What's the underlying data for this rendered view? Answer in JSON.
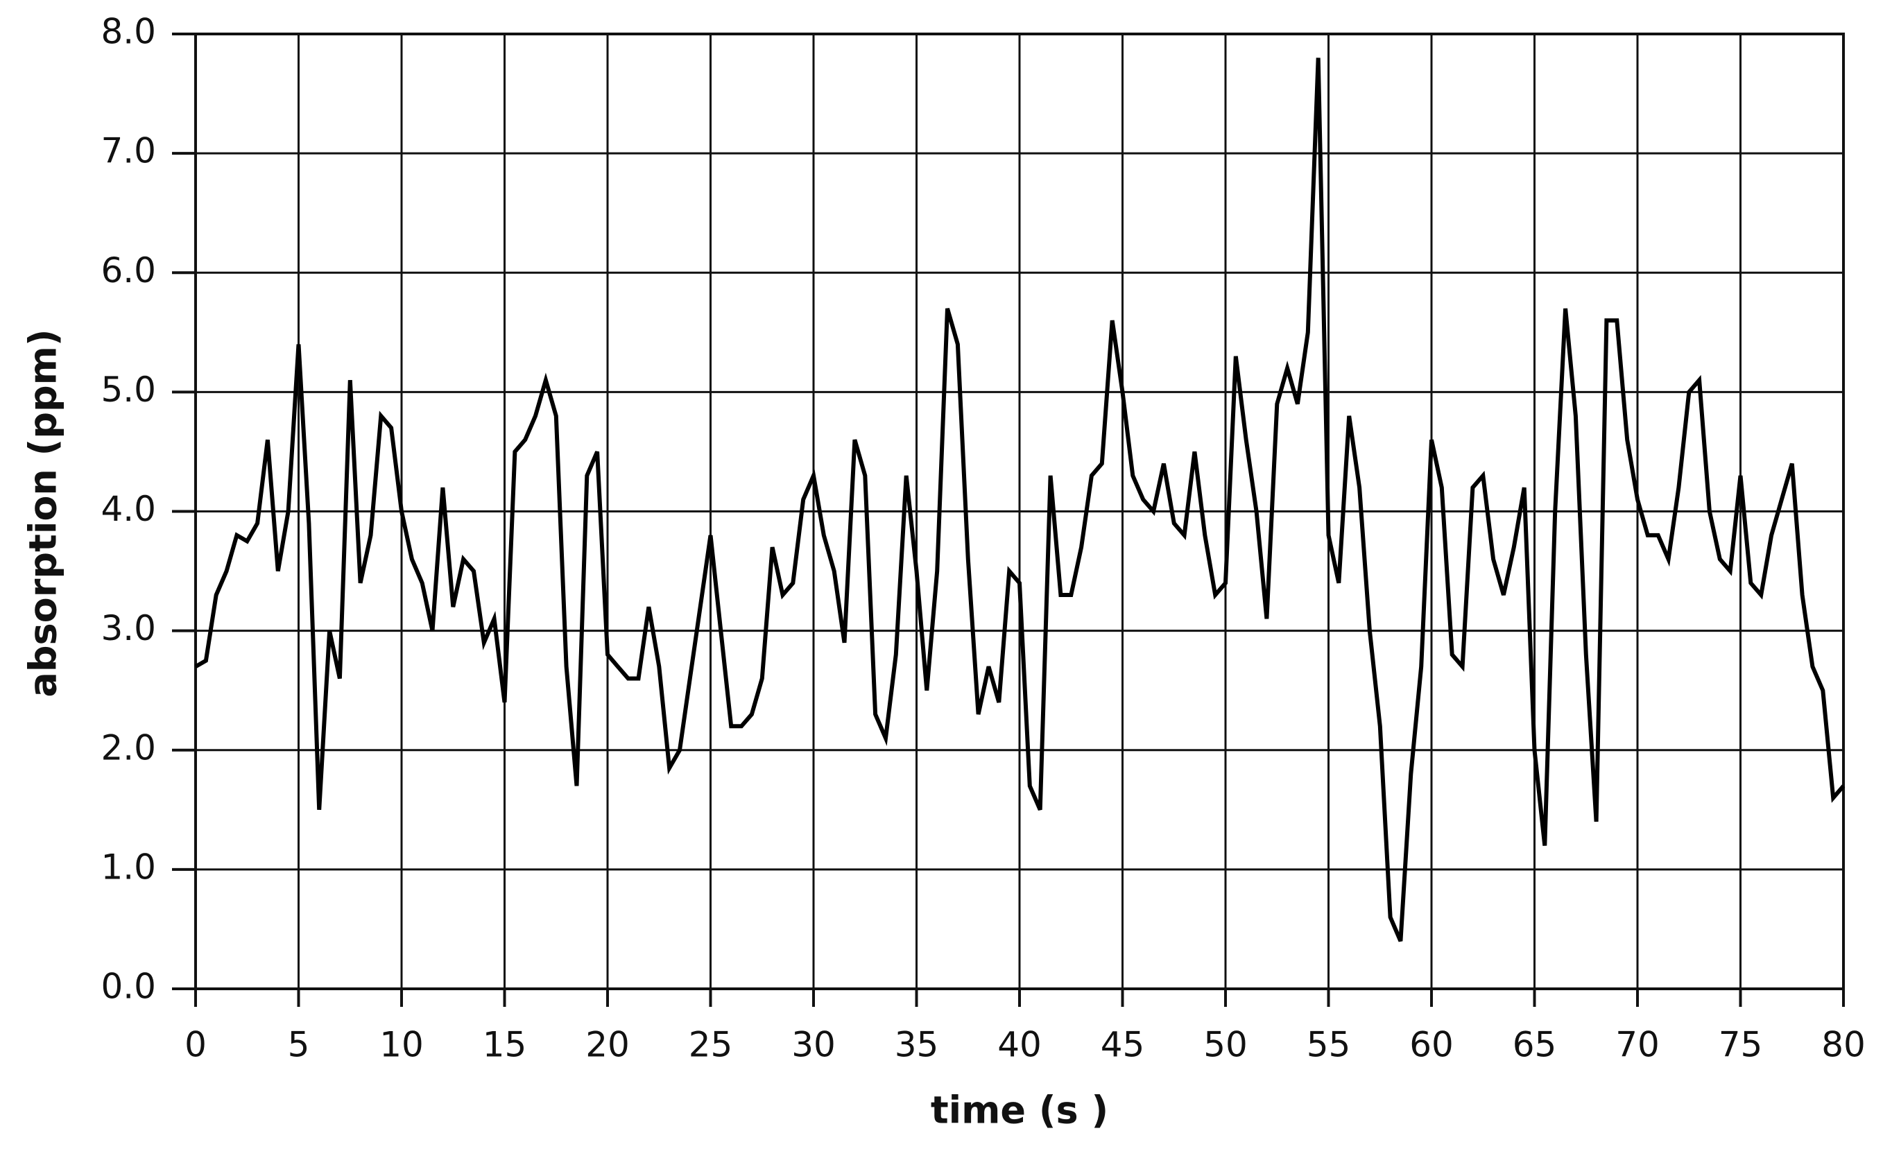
{
  "chart_data": {
    "type": "line",
    "xlabel": "time (s )",
    "ylabel": "absorption (ppm)",
    "x": [
      0,
      0.5,
      1,
      1.5,
      2,
      2.5,
      3,
      3.5,
      4,
      4.5,
      5,
      5.5,
      6,
      6.5,
      7,
      7.5,
      8,
      8.5,
      9,
      9.5,
      10,
      10.5,
      11,
      11.5,
      12,
      12.5,
      13,
      13.5,
      14,
      14.5,
      15,
      15.5,
      16,
      16.5,
      17,
      17.5,
      18,
      18.5,
      19,
      19.5,
      20,
      20.5,
      21,
      21.5,
      22,
      22.5,
      23,
      23.5,
      24,
      24.5,
      25,
      25.5,
      26,
      26.5,
      27,
      27.5,
      28,
      28.5,
      29,
      29.5,
      30,
      30.5,
      31,
      31.5,
      32,
      32.5,
      33,
      33.5,
      34,
      34.5,
      35,
      35.5,
      36,
      36.5,
      37,
      37.5,
      38,
      38.5,
      39,
      39.5,
      40,
      40.5,
      41,
      41.5,
      42,
      42.5,
      43,
      43.5,
      44,
      44.5,
      45,
      45.5,
      46,
      46.5,
      47,
      47.5,
      48,
      48.5,
      49,
      49.5,
      50,
      50.5,
      51,
      51.5,
      52,
      52.5,
      53,
      53.5,
      54,
      54.5,
      55,
      55.5,
      56,
      56.5,
      57,
      57.5,
      58,
      58.5,
      59,
      59.5,
      60,
      60.5,
      61,
      61.5,
      62,
      62.5,
      63,
      63.5,
      64,
      64.5,
      65,
      65.5,
      66,
      66.5,
      67,
      67.5,
      68,
      68.5,
      69,
      69.5,
      70,
      70.5,
      71,
      71.5,
      72,
      72.5,
      73,
      73.5,
      74,
      74.5,
      75,
      75.5,
      76,
      76.5,
      77,
      77.5,
      78,
      78.5,
      79,
      79.5,
      80
    ],
    "values": [
      2.7,
      2.75,
      3.3,
      3.5,
      3.8,
      3.75,
      3.9,
      4.6,
      3.5,
      4.0,
      5.4,
      3.9,
      1.5,
      3.0,
      2.6,
      5.1,
      3.4,
      3.8,
      4.8,
      4.7,
      4.0,
      3.6,
      3.4,
      3.0,
      4.2,
      3.2,
      3.6,
      3.5,
      2.9,
      3.1,
      2.4,
      4.5,
      4.6,
      4.8,
      5.1,
      4.8,
      2.7,
      1.7,
      4.3,
      4.5,
      2.8,
      2.7,
      2.6,
      2.6,
      3.2,
      2.7,
      1.85,
      2.0,
      2.6,
      3.2,
      3.8,
      3.0,
      2.2,
      2.2,
      2.3,
      2.6,
      3.7,
      3.3,
      3.4,
      4.1,
      4.3,
      3.8,
      3.5,
      2.9,
      4.6,
      4.3,
      2.3,
      2.1,
      2.8,
      4.3,
      3.5,
      2.5,
      3.5,
      5.7,
      5.4,
      3.6,
      2.3,
      2.7,
      2.4,
      3.5,
      3.4,
      1.7,
      1.5,
      4.3,
      3.3,
      3.3,
      3.7,
      4.3,
      4.4,
      5.6,
      5.0,
      4.3,
      4.1,
      4.0,
      4.4,
      3.9,
      3.8,
      4.5,
      3.8,
      3.3,
      3.4,
      5.3,
      4.6,
      4.0,
      3.1,
      4.9,
      5.2,
      4.9,
      5.5,
      7.8,
      3.8,
      3.4,
      4.8,
      4.2,
      3.0,
      2.2,
      0.6,
      0.4,
      1.8,
      2.7,
      4.6,
      4.2,
      2.8,
      2.7,
      4.2,
      4.3,
      3.6,
      3.3,
      3.7,
      4.2,
      2.0,
      1.2,
      4.0,
      5.7,
      4.8,
      2.8,
      1.4,
      5.6,
      5.6,
      4.6,
      4.1,
      3.8,
      3.8,
      3.6,
      4.2,
      5.0,
      5.1,
      4.0,
      3.6,
      3.5,
      4.3,
      3.4,
      3.3,
      3.8,
      4.1,
      4.4,
      3.3,
      2.7,
      2.5,
      1.6,
      1.7
    ],
    "color": "#000000",
    "xlim": [
      0,
      80
    ],
    "ylim": [
      0,
      8
    ],
    "xticks": [
      0,
      5,
      10,
      15,
      20,
      25,
      30,
      35,
      40,
      45,
      50,
      55,
      60,
      65,
      70,
      75,
      80
    ],
    "yticks": [
      {
        "value": 0,
        "label": "0.0"
      },
      {
        "value": 1,
        "label": "1.0"
      },
      {
        "value": 2,
        "label": "2.0"
      },
      {
        "value": 3,
        "label": "3.0"
      },
      {
        "value": 4,
        "label": "4.0"
      },
      {
        "value": 5,
        "label": "5.0"
      },
      {
        "value": 6,
        "label": "6.0"
      },
      {
        "value": 7,
        "label": "7.0"
      },
      {
        "value": 8,
        "label": "8.0"
      }
    ],
    "grid": true
  }
}
